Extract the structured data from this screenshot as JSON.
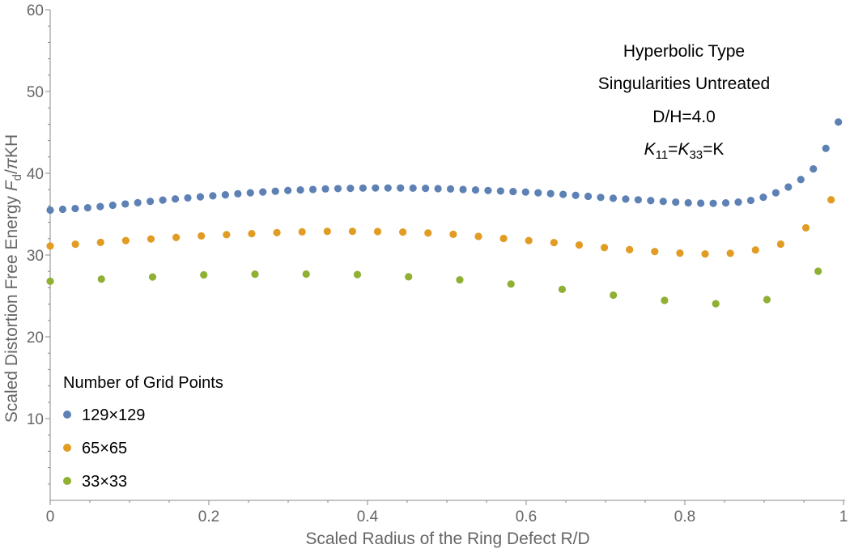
{
  "chart_data": {
    "type": "scatter",
    "title": "",
    "xlabel": "Scaled Radius of the Ring Defect R/D",
    "ylabel": {
      "prefix": "Scaled Distortion Free Energy ",
      "F": "F",
      "sub_d": "d",
      "slash": "/",
      "pi": "π",
      "suffix": "KH"
    },
    "xlim": [
      0,
      1
    ],
    "ylim": [
      0,
      60
    ],
    "x_ticks": [
      "0",
      "0.2",
      "0.4",
      "0.6",
      "0.8",
      "1"
    ],
    "y_ticks": [
      "10",
      "20",
      "30",
      "40",
      "50",
      "60"
    ],
    "x_tick_values": [
      0,
      0.2,
      0.4,
      0.6,
      0.8,
      1.0
    ],
    "y_tick_values": [
      10,
      20,
      30,
      40,
      50,
      60
    ],
    "annotations": {
      "line1": "Hyperbolic Type",
      "line2": "Singularities Untreated",
      "line3": "D/H=4.0",
      "line4": {
        "K": "K",
        "sub1": "11",
        "eq1": "=",
        "sub2": "33",
        "eq2": "=K"
      }
    },
    "legend": {
      "title": "Number of Grid Points",
      "placement": "bottom-left"
    },
    "series": [
      {
        "name": "129×129",
        "color": "#5e81b5",
        "n": 64,
        "anchors": [
          [
            0,
            35.5
          ],
          [
            0.05,
            35.8
          ],
          [
            0.1,
            36.3
          ],
          [
            0.15,
            36.8
          ],
          [
            0.2,
            37.2
          ],
          [
            0.25,
            37.6
          ],
          [
            0.3,
            37.9
          ],
          [
            0.35,
            38.1
          ],
          [
            0.4,
            38.2
          ],
          [
            0.45,
            38.2
          ],
          [
            0.5,
            38.1
          ],
          [
            0.55,
            37.9
          ],
          [
            0.6,
            37.7
          ],
          [
            0.65,
            37.4
          ],
          [
            0.7,
            37.0
          ],
          [
            0.75,
            36.7
          ],
          [
            0.8,
            36.4
          ],
          [
            0.83,
            36.3
          ],
          [
            0.86,
            36.4
          ],
          [
            0.88,
            36.6
          ],
          [
            0.9,
            37.1
          ],
          [
            0.92,
            37.8
          ],
          [
            0.94,
            38.8
          ],
          [
            0.95,
            39.5
          ],
          [
            0.96,
            40.3
          ],
          [
            0.97,
            41.5
          ],
          [
            0.98,
            43.5
          ],
          [
            1.0,
            47.6
          ]
        ]
      },
      {
        "name": "65×65",
        "color": "#e19c24",
        "n": 32,
        "anchors": [
          [
            0,
            31.1
          ],
          [
            0.1,
            31.8
          ],
          [
            0.2,
            32.4
          ],
          [
            0.3,
            32.8
          ],
          [
            0.35,
            32.9
          ],
          [
            0.4,
            32.9
          ],
          [
            0.45,
            32.8
          ],
          [
            0.5,
            32.6
          ],
          [
            0.55,
            32.2
          ],
          [
            0.6,
            31.8
          ],
          [
            0.65,
            31.4
          ],
          [
            0.7,
            30.9
          ],
          [
            0.75,
            30.5
          ],
          [
            0.8,
            30.2
          ],
          [
            0.84,
            30.1
          ],
          [
            0.87,
            30.3
          ],
          [
            0.9,
            30.8
          ],
          [
            0.92,
            31.3
          ],
          [
            0.94,
            32.3
          ],
          [
            0.95,
            33.1
          ],
          [
            0.97,
            34.9
          ],
          [
            1.0,
            38.8
          ]
        ]
      },
      {
        "name": "33×33",
        "color": "#8fb032",
        "n": 16,
        "anchors": [
          [
            0,
            26.8
          ],
          [
            0.1,
            27.2
          ],
          [
            0.2,
            27.6
          ],
          [
            0.3,
            27.7
          ],
          [
            0.4,
            27.6
          ],
          [
            0.5,
            27.1
          ],
          [
            0.6,
            26.3
          ],
          [
            0.7,
            25.2
          ],
          [
            0.8,
            24.2
          ],
          [
            0.85,
            24.0
          ],
          [
            0.9,
            24.4
          ],
          [
            0.94,
            26.2
          ],
          [
            1.0,
            30.1
          ]
        ]
      }
    ]
  }
}
